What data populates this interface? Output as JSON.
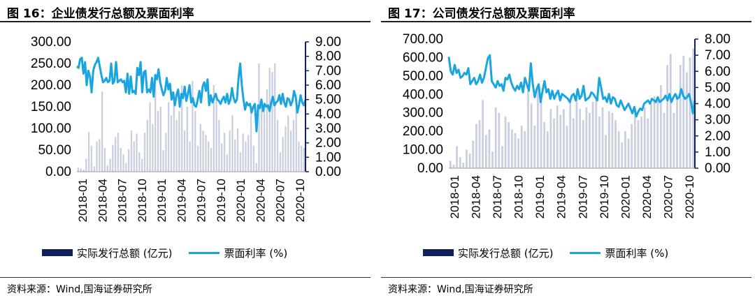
{
  "panels": [
    {
      "title": "图 16：企业债发行总额及票面利率",
      "source": "资料来源：Wind,国海证券研究所",
      "legend": {
        "bar": "实际发行总额 (亿元)",
        "line": "票面利率 (%)"
      }
    },
    {
      "title": "图 17：公司债发行总额及票面利率",
      "source": "资料来源：Wind,国海证券研究所",
      "legend": {
        "bar": "实际发行总额 (亿元)",
        "line": "票面利率 (%)"
      }
    }
  ],
  "colors": {
    "bars": "#c9cfde",
    "line": "#19a5e0",
    "legend_bar": "#10205a",
    "axis": "#10205a"
  },
  "chart_data": [
    {
      "type": "bar+line",
      "title": "图 16：企业债发行总额及票面利率",
      "x_labels": [
        "2018-01",
        "2018-04",
        "2018-07",
        "2018-10",
        "2019-01",
        "2019-04",
        "2019-07",
        "2019-10",
        "2020-01",
        "2020-04",
        "2020-07",
        "2020-10"
      ],
      "y_left": {
        "ticks": [
          "0.00",
          "50.00",
          "100.00",
          "150.00",
          "200.00",
          "250.00",
          "300.00"
        ],
        "lim": [
          0,
          300
        ]
      },
      "y_right": {
        "ticks": [
          "0.00",
          "1.00",
          "2.00",
          "3.00",
          "4.00",
          "5.00",
          "6.00",
          "7.00",
          "8.00",
          "9.00"
        ],
        "lim": [
          0,
          9
        ]
      },
      "series": [
        {
          "name": "实际发行总额 (亿元)",
          "type": "bar",
          "axis": "left",
          "values": [
            10,
            8,
            5,
            30,
            92,
            60,
            12,
            70,
            75,
            185,
            55,
            15,
            30,
            62,
            80,
            90,
            55,
            40,
            20,
            52,
            95,
            70,
            88,
            45,
            30,
            90,
            120,
            160,
            110,
            210,
            140,
            150,
            50,
            90,
            160,
            130,
            165,
            120,
            140,
            200,
            95,
            150,
            70,
            210,
            140,
            60,
            110,
            95,
            85,
            70,
            55,
            200,
            170,
            120,
            65,
            90,
            40,
            95,
            130,
            75,
            100,
            45,
            88,
            70,
            85,
            150,
            60,
            20,
            250,
            155,
            160,
            190,
            240,
            230,
            250,
            120,
            45,
            80,
            105,
            130,
            95,
            120,
            148,
            70,
            60,
            55
          ]
        },
        {
          "name": "票面利率 (%)",
          "type": "line",
          "axis": "right",
          "values": [
            7.3,
            7.2,
            7.8,
            7.9,
            6.8,
            7.6,
            6.0,
            7.0,
            6.6,
            5.5,
            7.0,
            7.4,
            7.6,
            7.9,
            7.3,
            6.7,
            6.2,
            6.3,
            6.5,
            6.2,
            6.3,
            7.5,
            6.1,
            6.3,
            7.6,
            6.2,
            6.3,
            6.4,
            6.2,
            6.3,
            5.5,
            6.8,
            5.4,
            6.6,
            5.5,
            5.6,
            5.4,
            7.2,
            6.7,
            7.6,
            5.5,
            6.9,
            7.0,
            5.5,
            5.7,
            5.5,
            6.5,
            5.2,
            6.7,
            6.4,
            7.1,
            6.2,
            5.7,
            5.3,
            5.6,
            6.5,
            5.7,
            6.1,
            5.0,
            5.5,
            4.6,
            5.3,
            5.7,
            4.5,
            5.4,
            5.1,
            5.9,
            4.9,
            5.4,
            6.0,
            4.8,
            5.1,
            4.6,
            4.5,
            5.0,
            5.6,
            4.8,
            5.9,
            6.2,
            5.6,
            6.4,
            4.6,
            5.3,
            4.8,
            5.1,
            5.4,
            5.0,
            4.9,
            4.7,
            5.0,
            5.2,
            4.8,
            5.4,
            4.7,
            5.0,
            5.8,
            5.1,
            4.8,
            5.0,
            6.5,
            7.5,
            6.0,
            5.0,
            4.3,
            4.8,
            4.6,
            4.7,
            4.1,
            4.5,
            4.7,
            2.8,
            4.6,
            4.4,
            5.0,
            4.2,
            4.7,
            4.5,
            4.6,
            4.2,
            4.8,
            5.2,
            4.6,
            4.8,
            4.9,
            5.3,
            4.7,
            5.4,
            4.8,
            4.5,
            5.1,
            5.0,
            4.6,
            4.9,
            5.6,
            5.2,
            4.1,
            4.6,
            5.3,
            4.8,
            4.6,
            5.0
          ]
        }
      ]
    },
    {
      "type": "bar+line",
      "title": "图 17：公司债发行总额及票面利率",
      "x_labels": [
        "2018-01",
        "2018-04",
        "2018-07",
        "2018-10",
        "2019-01",
        "2019-04",
        "2019-07",
        "2019-10",
        "2020-01",
        "2020-04",
        "2020-07",
        "2020-10"
      ],
      "y_left": {
        "ticks": [
          "0.00",
          "100.00",
          "200.00",
          "300.00",
          "400.00",
          "500.00",
          "600.00",
          "700.00"
        ],
        "lim": [
          0,
          700
        ]
      },
      "y_right": {
        "ticks": [
          "0.00",
          "1.00",
          "2.00",
          "3.00",
          "4.00",
          "5.00",
          "6.00",
          "7.00",
          "8.00"
        ],
        "lim": [
          0,
          8
        ]
      },
      "series": [
        {
          "name": "实际发行总额 (亿元)",
          "type": "bar",
          "axis": "left",
          "values": [
            40,
            20,
            120,
            60,
            30,
            100,
            80,
            150,
            240,
            260,
            370,
            180,
            210,
            90,
            330,
            300,
            120,
            280,
            250,
            210,
            190,
            160,
            230,
            200,
            420,
            350,
            230,
            440,
            380,
            250,
            200,
            320,
            270,
            340,
            290,
            320,
            230,
            360,
            270,
            420,
            320,
            260,
            330,
            300,
            360,
            370,
            280,
            330,
            180,
            310,
            300,
            260,
            200,
            140,
            200,
            160,
            240,
            310,
            260,
            280,
            330,
            270,
            350,
            390,
            380,
            450,
            300,
            560,
            620,
            300,
            400,
            560,
            610,
            520,
            600,
            650
          ]
        },
        {
          "name": "票面利率 (%)",
          "type": "line",
          "axis": "right",
          "values": [
            6.9,
            6.0,
            5.8,
            6.4,
            5.9,
            6.1,
            5.6,
            5.7,
            5.9,
            5.8,
            6.2,
            5.2,
            5.4,
            5.6,
            5.2,
            5.4,
            5.8,
            5.3,
            5.6,
            6.2,
            6.8,
            7.0,
            5.4,
            5.2,
            5.0,
            5.4,
            5.1,
            5.2,
            4.8,
            5.6,
            5.5,
            5.8,
            5.3,
            5.0,
            4.8,
            5.1,
            4.9,
            5.3,
            4.7,
            5.6,
            5.2,
            4.8,
            6.5,
            5.2,
            4.4,
            4.9,
            5.2,
            4.1,
            4.8,
            5.4,
            4.7,
            4.9,
            4.3,
            4.8,
            4.3,
            4.6,
            4.8,
            4.2,
            4.6,
            4.5,
            4.4,
            4.3,
            4.1,
            4.5,
            4.6,
            4.2,
            4.9,
            4.3,
            4.5,
            5.1,
            4.2,
            4.3,
            4.4,
            4.7,
            4.6,
            4.4,
            4.2,
            5.6,
            5.0,
            4.3,
            4.4,
            4.1,
            4.6,
            4.0,
            4.4,
            4.3,
            3.9,
            3.8,
            4.2,
            3.9,
            3.6,
            3.8,
            4.0,
            3.7,
            3.4,
            3.8,
            3.2,
            3.5,
            3.7,
            3.6,
            4.0,
            4.1,
            4.2,
            4.0,
            4.3,
            4.2,
            4.1,
            4.4,
            4.1,
            4.2,
            4.3,
            4.5,
            4.2,
            4.6,
            4.1,
            4.4,
            4.6,
            4.3,
            4.4,
            4.9,
            4.5,
            4.3,
            4.4,
            4.6,
            4.1,
            3.4,
            4.2
          ]
        }
      ]
    }
  ]
}
